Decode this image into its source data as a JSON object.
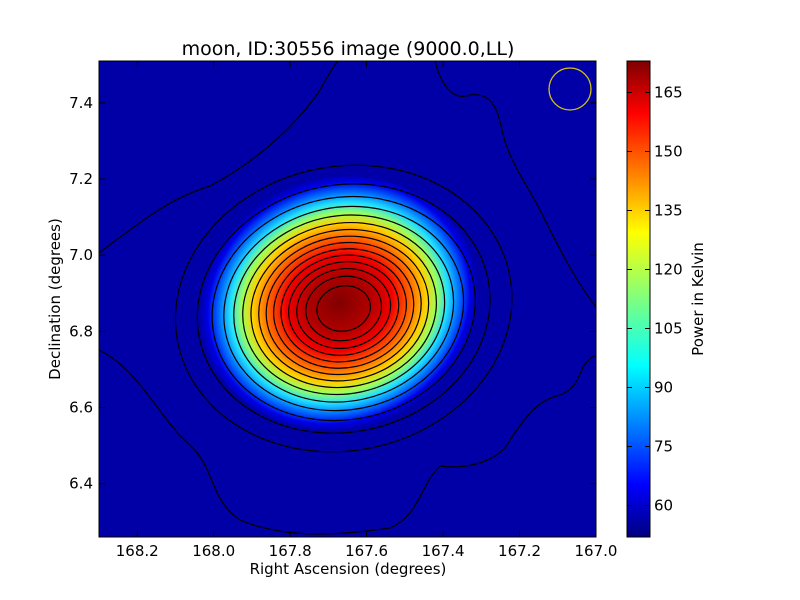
{
  "chart_data": {
    "type": "heatmap",
    "title": "moon, ID:30556 image (9000.0,LL)",
    "xlabel": "Right Ascension (degrees)",
    "ylabel": "Declination (degrees)",
    "xlim": [
      168.3,
      167.0
    ],
    "ylim": [
      6.26,
      7.51
    ],
    "x_ticks": [
      168.2,
      168.0,
      167.8,
      167.6,
      167.4,
      167.2,
      167.0
    ],
    "x_tick_labels": [
      "168.2",
      "168.0",
      "167.8",
      "167.6",
      "167.4",
      "167.2",
      "167.0"
    ],
    "y_ticks": [
      6.4,
      6.6,
      6.8,
      7.0,
      7.2,
      7.4
    ],
    "y_tick_labels": [
      "6.4",
      "6.6",
      "6.8",
      "7.0",
      "7.2",
      "7.4"
    ],
    "colormap": "jet",
    "colorbar": {
      "label": "Power in Kelvin",
      "range": [
        52,
        173
      ],
      "ticks": [
        60,
        75,
        90,
        105,
        120,
        135,
        150,
        165
      ],
      "tick_labels": [
        "60",
        "75",
        "90",
        "105",
        "120",
        "135",
        "150",
        "165"
      ]
    },
    "source": {
      "center_ra": 167.66,
      "center_dec": 6.86,
      "peak_kelvin": 173,
      "background_kelvin": 52,
      "sigma_ra_deg": 0.19,
      "sigma_dec_deg": 0.16
    },
    "beam": {
      "ra": 167.05,
      "dec": 7.44,
      "radius_deg": 0.055,
      "color": "#d4c010"
    },
    "contours": "black"
  }
}
